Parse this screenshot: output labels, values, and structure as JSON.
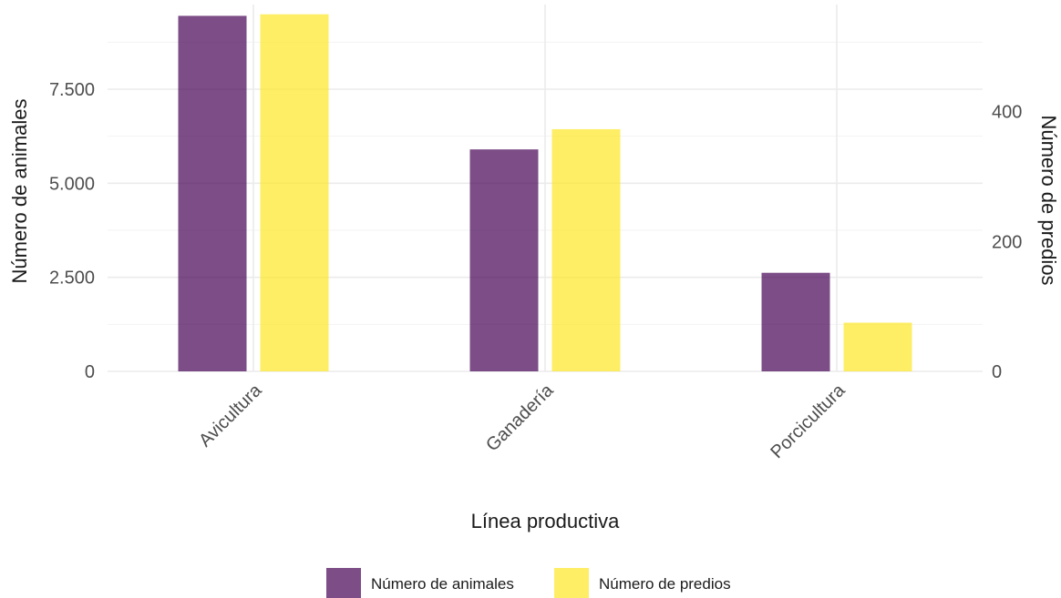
{
  "chart_data": {
    "type": "bar",
    "categories": [
      "Avicultura",
      "Ganadería",
      "Porcicultura"
    ],
    "series": [
      {
        "name": "Número de animales",
        "axis": "left",
        "values": [
          9450,
          5900,
          2620
        ],
        "color": "#440154"
      },
      {
        "name": "Número de predios",
        "axis": "right",
        "values": [
          550,
          373,
          75
        ],
        "color": "#FDE725"
      }
    ],
    "xlabel": "Línea productiva",
    "ylabel": "Número de animales",
    "y2label": "Número de predios",
    "ylim": [
      0,
      9750
    ],
    "y2lim": [
      0,
      565
    ],
    "yticks": [
      0,
      2500,
      5000,
      7500
    ],
    "yticklabels": [
      "0",
      "2.500",
      "5.000",
      "7.500"
    ],
    "y2ticks": [
      0,
      200,
      400
    ],
    "y2ticklabels": [
      "0",
      "200",
      "400"
    ],
    "grid": true,
    "legend_position": "bottom"
  }
}
